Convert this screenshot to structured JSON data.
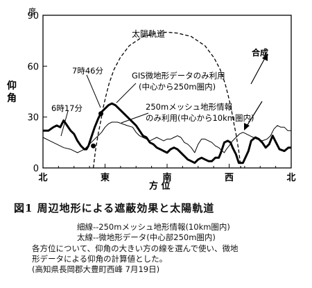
{
  "chart_data": {
    "type": "line",
    "y_unit": "度",
    "ylabel": "仰角",
    "xlabel": "方 位",
    "ylim": [
      0,
      90
    ],
    "y_ticks": [
      0,
      30,
      60,
      90
    ],
    "x_tick_labels": [
      {
        "label": "北",
        "az": 0
      },
      {
        "label": "東",
        "az": 90
      },
      {
        "label": "南",
        "az": 180
      },
      {
        "label": "西",
        "az": 270
      },
      {
        "label": "北",
        "az": 360
      }
    ],
    "series": [
      {
        "name": "太陽軌道",
        "style": "dashed",
        "points": [
          [
            73,
            0
          ],
          [
            76,
            10
          ],
          [
            80,
            20
          ],
          [
            84,
            28
          ],
          [
            87,
            35
          ],
          [
            91,
            42
          ],
          [
            96,
            50
          ],
          [
            103,
            58
          ],
          [
            112,
            65
          ],
          [
            125,
            72
          ],
          [
            145,
            77.5
          ],
          [
            165,
            79.5
          ],
          [
            180,
            80
          ],
          [
            195,
            79.5
          ],
          [
            215,
            77.5
          ],
          [
            235,
            72
          ],
          [
            248,
            65
          ],
          [
            257,
            58
          ],
          [
            264,
            50
          ],
          [
            269,
            42
          ],
          [
            273,
            35
          ],
          [
            276,
            28
          ],
          [
            280,
            20
          ],
          [
            284,
            10
          ],
          [
            287,
            0
          ]
        ]
      },
      {
        "name": "GIS微地形データのみ利用(中心から250m圏内)",
        "style": "thick",
        "points": [
          [
            0,
            22
          ],
          [
            8,
            22
          ],
          [
            15,
            24
          ],
          [
            20,
            25
          ],
          [
            25,
            24
          ],
          [
            30,
            28
          ],
          [
            35,
            25
          ],
          [
            40,
            22
          ],
          [
            45,
            20
          ],
          [
            50,
            16
          ],
          [
            55,
            13
          ],
          [
            60,
            11
          ],
          [
            63,
            11
          ],
          [
            66,
            13
          ],
          [
            70,
            18
          ],
          [
            75,
            24
          ],
          [
            80,
            29
          ],
          [
            85,
            33
          ],
          [
            90,
            35
          ],
          [
            95,
            37
          ],
          [
            100,
            38
          ],
          [
            105,
            37
          ],
          [
            110,
            35
          ],
          [
            115,
            33
          ],
          [
            120,
            31
          ],
          [
            125,
            29
          ],
          [
            130,
            27
          ],
          [
            135,
            25
          ],
          [
            140,
            22
          ],
          [
            145,
            19
          ],
          [
            150,
            18
          ],
          [
            155,
            15
          ],
          [
            160,
            14
          ],
          [
            165,
            12
          ],
          [
            170,
            11
          ],
          [
            175,
            10
          ],
          [
            180,
            9
          ],
          [
            185,
            11
          ],
          [
            190,
            12
          ],
          [
            195,
            11
          ],
          [
            200,
            9
          ],
          [
            205,
            7
          ],
          [
            210,
            5
          ],
          [
            215,
            4
          ],
          [
            220,
            3
          ],
          [
            225,
            5
          ],
          [
            230,
            6
          ],
          [
            235,
            5
          ],
          [
            240,
            4
          ],
          [
            245,
            4
          ],
          [
            250,
            6
          ],
          [
            255,
            6
          ],
          [
            258,
            9
          ],
          [
            263,
            15
          ],
          [
            268,
            16
          ],
          [
            272,
            15
          ],
          [
            275,
            12
          ],
          [
            280,
            8
          ],
          [
            284,
            3
          ],
          [
            290,
            3
          ],
          [
            298,
            10
          ],
          [
            302,
            16
          ],
          [
            308,
            18
          ],
          [
            313,
            17
          ],
          [
            318,
            15
          ],
          [
            323,
            12
          ],
          [
            328,
            14
          ],
          [
            333,
            19
          ],
          [
            338,
            15
          ],
          [
            343,
            11
          ],
          [
            350,
            10
          ],
          [
            356,
            12
          ],
          [
            360,
            12
          ]
        ]
      },
      {
        "name": "250mメッシュ地形情報のみ利用(中心から10km圏内)",
        "style": "thin",
        "points": [
          [
            0,
            18
          ],
          [
            10,
            16
          ],
          [
            20,
            14
          ],
          [
            30,
            12
          ],
          [
            40,
            11
          ],
          [
            45,
            10
          ],
          [
            50,
            9
          ],
          [
            55,
            10
          ],
          [
            60,
            11
          ],
          [
            65,
            13
          ],
          [
            70,
            15
          ],
          [
            75,
            17
          ],
          [
            80,
            19
          ],
          [
            85,
            21
          ],
          [
            90,
            24
          ],
          [
            95,
            26
          ],
          [
            100,
            27
          ],
          [
            108,
            27
          ],
          [
            115,
            26
          ],
          [
            122,
            25
          ],
          [
            130,
            24
          ],
          [
            135,
            21
          ],
          [
            140,
            19
          ],
          [
            145,
            18
          ],
          [
            150,
            17
          ],
          [
            155,
            16
          ],
          [
            160,
            17
          ],
          [
            165,
            18
          ],
          [
            170,
            17
          ],
          [
            175,
            16
          ],
          [
            180,
            17
          ],
          [
            185,
            17
          ],
          [
            190,
            18
          ],
          [
            195,
            19
          ],
          [
            200,
            18
          ],
          [
            205,
            15
          ],
          [
            210,
            14
          ],
          [
            215,
            12
          ],
          [
            220,
            9
          ],
          [
            225,
            14
          ],
          [
            230,
            17
          ],
          [
            235,
            17
          ],
          [
            240,
            16
          ],
          [
            245,
            15
          ],
          [
            250,
            13
          ],
          [
            255,
            12
          ],
          [
            260,
            10
          ],
          [
            263,
            9
          ],
          [
            266,
            11
          ],
          [
            270,
            13
          ],
          [
            275,
            16
          ],
          [
            280,
            18
          ],
          [
            285,
            20
          ],
          [
            290,
            21
          ],
          [
            295,
            20
          ],
          [
            300,
            19
          ],
          [
            305,
            18
          ],
          [
            310,
            17
          ],
          [
            318,
            16
          ],
          [
            325,
            17
          ],
          [
            330,
            19
          ],
          [
            335,
            23
          ],
          [
            340,
            25
          ],
          [
            345,
            24
          ],
          [
            350,
            24
          ],
          [
            355,
            22
          ],
          [
            360,
            22
          ]
        ]
      }
    ],
    "annotations": {
      "sun_label": "太陽軌道",
      "composite_label": "合成",
      "gis_label_1": "GIS微地形データのみ利用",
      "gis_label_2": "(中心から250m圏内)",
      "mesh_label_1": "250mメッシュ地形情報",
      "mesh_label_2": "のみ利用(中心から10km圏内)",
      "sunrise_label": "6時17分",
      "sunrise_point": [
        73,
        13
      ],
      "visible_label": "7時46分",
      "visible_point": [
        84,
        32
      ]
    }
  },
  "caption": {
    "title": "図1 周辺地形による遮蔽効果と太陽軌道",
    "line1": "細線--250mメッシュ地形情報(10km圏内)",
    "line2": "太線--微地形データ(中心部250m圏内)",
    "line3": "各方位について、仰角の大きい方の線を選んで使い、微地",
    "line4": "形データによる仰角の計算値とした。",
    "line5": "(高知県長岡郡大豊町西峰 7月19日)"
  }
}
